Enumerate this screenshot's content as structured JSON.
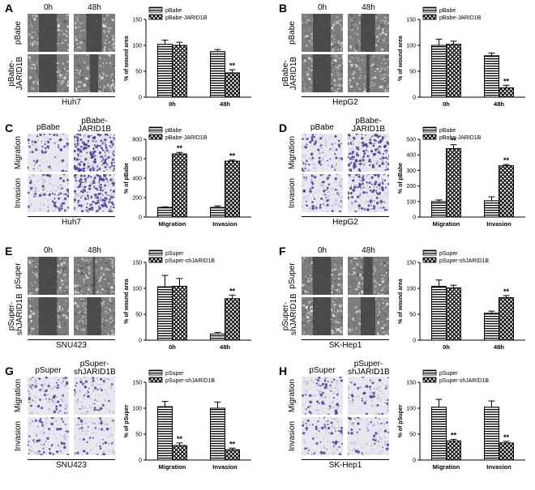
{
  "panels": [
    {
      "id": "A",
      "cell": "Huh7",
      "type": "wound",
      "cols": [
        "0h",
        "48h"
      ],
      "rows": [
        "pBabe",
        "pBabe-\nJARID1B"
      ],
      "chart_data": {
        "type": "bar",
        "categories": [
          "0h",
          "48h"
        ],
        "ylabel": "% of wound area",
        "ylim": [
          0,
          150
        ],
        "yticks": [
          0,
          50,
          100,
          150
        ],
        "series": [
          {
            "name": "pBabe",
            "values": [
              102,
              88
            ],
            "errors": [
              8,
              4
            ]
          },
          {
            "name": "pBabe-JARID1B",
            "values": [
              100,
              47
            ],
            "errors": [
              6,
              6
            ]
          }
        ],
        "annotations": [
          {
            "category": "48h",
            "series": 1,
            "text": "**"
          }
        ]
      }
    },
    {
      "id": "B",
      "cell": "HepG2",
      "type": "wound",
      "cols": [
        "0h",
        "48h"
      ],
      "rows": [
        "pBabe",
        "pBabe-\nJARID1B"
      ],
      "chart_data": {
        "type": "bar",
        "categories": [
          "0h",
          "48h"
        ],
        "ylabel": "% of wound area",
        "ylim": [
          0,
          150
        ],
        "yticks": [
          0,
          50,
          100,
          150
        ],
        "series": [
          {
            "name": "pBabe",
            "values": [
              100,
              80
            ],
            "errors": [
              12,
              5
            ]
          },
          {
            "name": "pBabe-JARID1B",
            "values": [
              102,
              18
            ],
            "errors": [
              6,
              5
            ]
          }
        ],
        "annotations": [
          {
            "category": "48h",
            "series": 1,
            "text": "**"
          }
        ]
      }
    },
    {
      "id": "C",
      "cell": "Huh7",
      "type": "transwell",
      "cols": [
        "pBabe",
        "pBabe-\nJARID1B"
      ],
      "rows": [
        "Migration",
        "Invasion"
      ],
      "chart_data": {
        "type": "bar",
        "categories": [
          "Migration",
          "Invasion"
        ],
        "ylabel": "% of pBabe",
        "ylim": [
          0,
          800
        ],
        "yticks": [
          0,
          200,
          400,
          600,
          800
        ],
        "series": [
          {
            "name": "pBabe",
            "values": [
              100,
              100
            ],
            "errors": [
              5,
              15
            ]
          },
          {
            "name": "pBabe-JARID1B",
            "values": [
              650,
              575
            ],
            "errors": [
              15,
              12
            ]
          }
        ],
        "annotations": [
          {
            "category": "Migration",
            "series": 1,
            "text": "**"
          },
          {
            "category": "Invasion",
            "series": 1,
            "text": "**"
          }
        ]
      }
    },
    {
      "id": "D",
      "cell": "HepG2",
      "type": "transwell",
      "cols": [
        "pBabe",
        "pBabe-\nJARID1B"
      ],
      "rows": [
        "Migration",
        "Invasion"
      ],
      "chart_data": {
        "type": "bar",
        "categories": [
          "Migration",
          "Invasion"
        ],
        "ylabel": "% of pBabe",
        "ylim": [
          0,
          500
        ],
        "yticks": [
          0,
          100,
          200,
          300,
          400,
          500
        ],
        "series": [
          {
            "name": "pBabe",
            "values": [
              100,
              105
            ],
            "errors": [
              10,
              25
            ]
          },
          {
            "name": "pBabe-JARID1B",
            "values": [
              440,
              330
            ],
            "errors": [
              25,
              8
            ]
          }
        ],
        "annotations": [
          {
            "category": "Migration",
            "series": 1,
            "text": "**"
          },
          {
            "category": "Invasion",
            "series": 1,
            "text": "**"
          }
        ]
      }
    },
    {
      "id": "E",
      "cell": "SNU423",
      "type": "wound",
      "cols": [
        "0h",
        "48h"
      ],
      "rows": [
        "pSuper",
        "pSuper-\nshJARID1B"
      ],
      "chart_data": {
        "type": "bar",
        "categories": [
          "0h",
          "48h"
        ],
        "ylabel": "% of wound area",
        "ylim": [
          0,
          150
        ],
        "yticks": [
          0,
          50,
          100,
          150
        ],
        "series": [
          {
            "name": "pSuper",
            "values": [
              103,
              12
            ],
            "errors": [
              22,
              3
            ]
          },
          {
            "name": "pSuper-shJARID1B",
            "values": [
              104,
              80
            ],
            "errors": [
              15,
              7
            ]
          }
        ],
        "annotations": [
          {
            "category": "48h",
            "series": 1,
            "text": "**"
          }
        ]
      }
    },
    {
      "id": "F",
      "cell": "SK-Hep1",
      "type": "wound",
      "cols": [
        "0h",
        "48h"
      ],
      "rows": [
        "pSuper",
        "pSuper-\nshJARID1B"
      ],
      "chart_data": {
        "type": "bar",
        "categories": [
          "0h",
          "48h"
        ],
        "ylabel": "% of wound area",
        "ylim": [
          0,
          150
        ],
        "yticks": [
          0,
          50,
          100,
          150
        ],
        "series": [
          {
            "name": "pSuper",
            "values": [
              104,
              52
            ],
            "errors": [
              12,
              4
            ]
          },
          {
            "name": "pSuper-shJARID1B",
            "values": [
              101,
              82
            ],
            "errors": [
              5,
              4
            ]
          }
        ],
        "annotations": [
          {
            "category": "48h",
            "series": 1,
            "text": "**"
          }
        ]
      }
    },
    {
      "id": "G",
      "cell": "SNU423",
      "type": "transwell",
      "cols": [
        "pSuper",
        "pSuper-\nshJARID1B"
      ],
      "rows": [
        "Migration",
        "Invasion"
      ],
      "chart_data": {
        "type": "bar",
        "categories": [
          "Migration",
          "Invasion"
        ],
        "ylabel": "% of pSuper",
        "ylim": [
          0,
          150
        ],
        "yticks": [
          0,
          50,
          100,
          150
        ],
        "series": [
          {
            "name": "pSuper",
            "values": [
              103,
              100
            ],
            "errors": [
              10,
              12
            ]
          },
          {
            "name": "pSuper-shJARID1B",
            "values": [
              28,
              20
            ],
            "errors": [
              5,
              3
            ]
          }
        ],
        "annotations": [
          {
            "category": "Migration",
            "series": 1,
            "text": "**"
          },
          {
            "category": "Invasion",
            "series": 1,
            "text": "**"
          }
        ]
      }
    },
    {
      "id": "H",
      "cell": "SK-Hep1",
      "type": "transwell",
      "cols": [
        "pSuper",
        "pSuper-\nshJARID1B"
      ],
      "rows": [
        "Migration",
        "Invasion"
      ],
      "chart_data": {
        "type": "bar",
        "categories": [
          "Migration",
          "Invasion"
        ],
        "ylabel": "% of pSuper",
        "ylim": [
          0,
          150
        ],
        "yticks": [
          0,
          50,
          100,
          150
        ],
        "series": [
          {
            "name": "pSuper",
            "values": [
              102,
              102
            ],
            "errors": [
              15,
              12
            ]
          },
          {
            "name": "pSuper-shJARID1B",
            "values": [
              37,
              33
            ],
            "errors": [
              3,
              3
            ]
          }
        ],
        "annotations": [
          {
            "category": "Migration",
            "series": 1,
            "text": "**"
          },
          {
            "category": "Invasion",
            "series": 1,
            "text": "**"
          }
        ]
      }
    }
  ]
}
